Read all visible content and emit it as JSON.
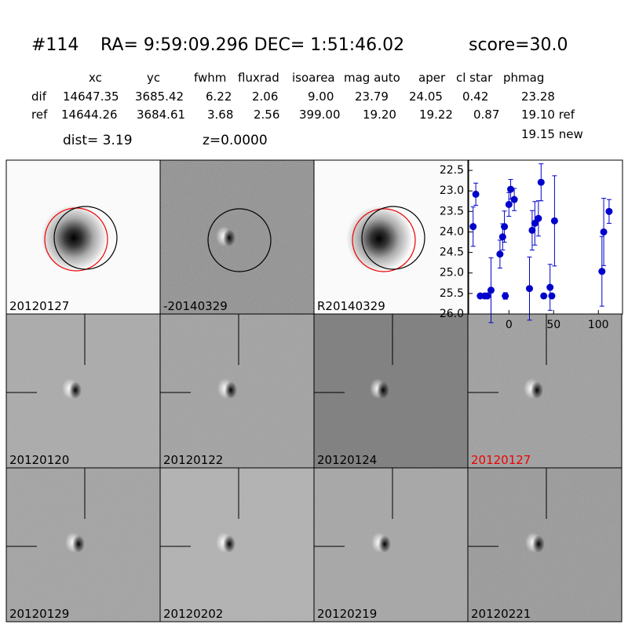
{
  "header": {
    "id": "#114",
    "coords": "RA= 9:59:09.296 DEC= 1:51:46.02",
    "score": "score=30.0"
  },
  "table": {
    "columns": [
      "xc",
      "yc",
      "fwhm",
      "fluxrad",
      "isoarea",
      "mag auto",
      "aper",
      "cl star",
      "phmag"
    ],
    "rows": [
      [
        "dif",
        "14647.35",
        "3685.42",
        "6.22",
        "2.06",
        "9.00",
        "23.79",
        "24.05",
        "0.42",
        "23.28"
      ],
      [
        "ref",
        "14644.26",
        "3684.61",
        "3.68",
        "2.56",
        "399.00",
        "19.20",
        "19.22",
        "0.87",
        "19.10 ref"
      ]
    ],
    "extra": "19.15 new",
    "dist": "dist=  3.19",
    "z": "z=0.0000"
  },
  "stamps": [
    "20120127",
    "-20140329",
    "R20140329",
    "20120120",
    "20120122",
    "20120124",
    "20120127",
    "20120129",
    "20120202",
    "20120219",
    "20120221"
  ],
  "chart_data": {
    "type": "errorbar",
    "x": [
      -40,
      -37,
      -32,
      -27,
      -24,
      -20,
      -10,
      -7,
      -5,
      -4,
      0,
      2,
      6,
      23,
      26,
      29,
      33,
      36,
      39,
      46,
      48,
      51,
      104,
      106,
      112
    ],
    "series": [
      {
        "color": "#0000cc",
        "values": [
          23.87,
          23.08,
          25.56,
          25.56,
          25.56,
          25.42,
          24.54,
          24.12,
          23.87,
          25.56,
          23.33,
          22.96,
          23.21,
          25.38,
          23.96,
          23.79,
          23.67,
          22.79,
          25.56,
          25.35,
          25.56,
          23.73,
          24.96,
          24.0,
          23.5
        ],
        "errors": [
          0.48,
          0.27,
          0.05,
          0.05,
          0.05,
          0.79,
          0.34,
          0.32,
          0.38,
          0.08,
          0.29,
          0.24,
          0.27,
          0.77,
          0.48,
          0.53,
          0.43,
          0.45,
          0.06,
          0.56,
          0.06,
          1.1,
          0.85,
          0.82,
          0.29
        ]
      }
    ],
    "xlim": [
      -45,
      127
    ],
    "xticks": [
      0,
      50,
      100
    ],
    "ylim": [
      22.25,
      26.0
    ],
    "y_inverted": true,
    "yticks": [
      22.5,
      {
        "value": 23,
        "label": "23.0"
      },
      23.5,
      {
        "value": 24,
        "label": "24.0"
      },
      24.5,
      {
        "value": 25,
        "label": "25.0"
      },
      25.5,
      {
        "value": 26,
        "label": "26.0"
      }
    ]
  }
}
